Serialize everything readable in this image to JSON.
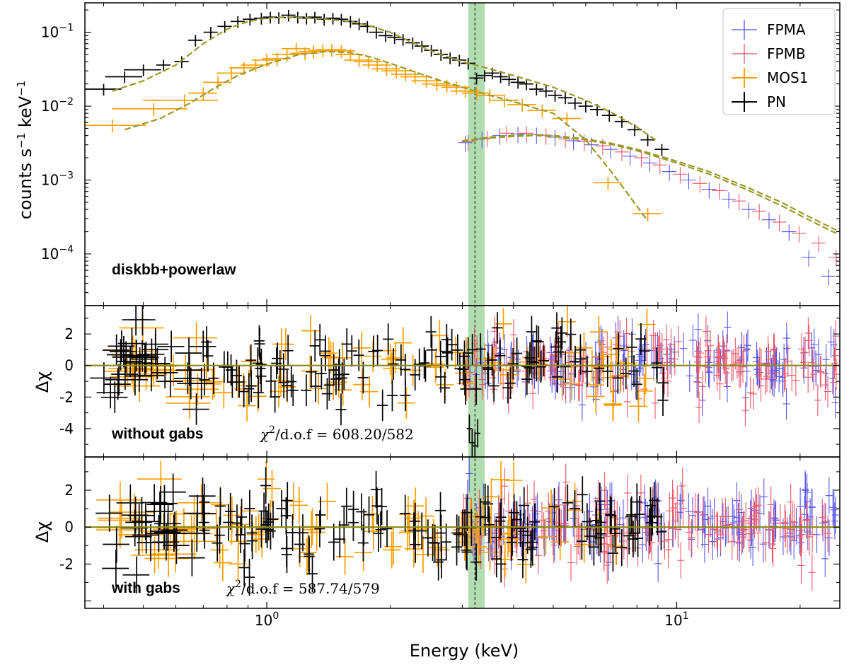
{
  "chart_data": {
    "type": "scatter",
    "x_scale": "log",
    "xlim": [
      0.36,
      25
    ],
    "xlabel": "Energy (keV)",
    "x_ticks": [
      {
        "value": 1,
        "base": "10",
        "exp": "0"
      },
      {
        "value": 10,
        "base": "10",
        "exp": "1"
      }
    ],
    "line_energy_keV": 3.22,
    "band_keV": [
      3.1,
      3.4
    ],
    "legend": {
      "position": "top-right",
      "entries": [
        {
          "name": "FPMA",
          "color": "#5555ee"
        },
        {
          "name": "FPMB",
          "color": "#ee5566"
        },
        {
          "name": "MOS1",
          "color": "#ff9f00"
        },
        {
          "name": "PN",
          "color": "#000000"
        }
      ]
    },
    "panels": [
      {
        "id": "spectrum",
        "y_scale": "log",
        "ylim": [
          2e-05,
          0.25
        ],
        "ylabel": "counts s-1 keV-1",
        "ylabel_parts": {
          "a": "counts s",
          "sup1": "−1",
          "b": " keV",
          "sup2": "−1"
        },
        "y_ticks": [
          {
            "value": 0.1,
            "base": "10",
            "exp": "−1"
          },
          {
            "value": 0.01,
            "base": "10",
            "exp": "−2"
          },
          {
            "value": 0.001,
            "base": "10",
            "exp": "−3"
          },
          {
            "value": 0.0001,
            "base": "10",
            "exp": "−4"
          }
        ],
        "label": "diskbb+powerlaw",
        "model_color": "#9a9a28",
        "series": [
          {
            "name": "PN",
            "color": "#000000",
            "x": [
              0.4,
              0.45,
              0.5,
              0.56,
              0.62,
              0.67,
              0.73,
              0.79,
              0.85,
              0.91,
              0.97,
              1.02,
              1.07,
              1.13,
              1.19,
              1.25,
              1.31,
              1.38,
              1.45,
              1.52,
              1.6,
              1.68,
              1.76,
              1.85,
              1.95,
              2.05,
              2.15,
              2.27,
              2.39,
              2.52,
              2.66,
              2.8,
              2.95,
              3.1,
              3.25,
              3.4,
              3.55,
              3.72,
              3.9,
              4.1,
              4.3,
              4.55,
              4.8,
              5.05,
              5.35,
              5.65,
              6.0,
              6.4,
              6.85,
              7.35,
              7.9,
              8.5,
              9.2
            ],
            "y": [
              0.017,
              0.025,
              0.031,
              0.036,
              0.04,
              0.078,
              0.1,
              0.12,
              0.14,
              0.15,
              0.155,
              0.16,
              0.158,
              0.17,
              0.16,
              0.155,
              0.16,
              0.15,
              0.155,
              0.15,
              0.14,
              0.13,
              0.12,
              0.1,
              0.09,
              0.085,
              0.08,
              0.072,
              0.065,
              0.057,
              0.05,
              0.045,
              0.042,
              0.038,
              0.024,
              0.026,
              0.028,
              0.025,
              0.023,
              0.021,
              0.02,
              0.017,
              0.016,
              0.014,
              0.013,
              0.011,
              0.01,
              0.009,
              0.0075,
              0.0062,
              0.0048,
              0.0035,
              0.0026
            ],
            "xerr_frac": 0.04,
            "yerr_frac": 0.18
          },
          {
            "name": "MOS1",
            "color": "#ff9f00",
            "x": [
              0.42,
              0.53,
              0.63,
              0.7,
              0.76,
              0.82,
              0.88,
              0.94,
              1.0,
              1.06,
              1.12,
              1.18,
              1.24,
              1.3,
              1.37,
              1.44,
              1.52,
              1.6,
              1.68,
              1.77,
              1.86,
              1.96,
              2.07,
              2.18,
              2.3,
              2.45,
              2.6,
              2.75,
              2.9,
              3.05,
              3.25,
              3.5,
              3.8,
              4.2,
              4.7,
              5.4,
              6.8,
              8.5
            ],
            "y": [
              0.0055,
              0.0092,
              0.012,
              0.015,
              0.021,
              0.028,
              0.033,
              0.036,
              0.042,
              0.044,
              0.05,
              0.06,
              0.052,
              0.055,
              0.057,
              0.058,
              0.056,
              0.05,
              0.042,
              0.04,
              0.036,
              0.032,
              0.03,
              0.027,
              0.025,
              0.022,
              0.02,
              0.019,
              0.018,
              0.016,
              0.015,
              0.014,
              0.012,
              0.0105,
              0.0088,
              0.0068,
              0.00092,
              0.00035
            ],
            "xerr_frac": 0.08,
            "yerr_frac": 0.2
          },
          {
            "name": "FPMA",
            "color": "#5555ee",
            "x": [
              3.05,
              3.35,
              3.7,
              4.1,
              4.55,
              5.05,
              5.6,
              6.2,
              6.9,
              7.7,
              8.6,
              9.6,
              10.7,
              12.0,
              13.4,
              15.0,
              16.8,
              18.8,
              21.0,
              23.5
            ],
            "y": [
              0.0032,
              0.0036,
              0.004,
              0.0042,
              0.0041,
              0.0038,
              0.0034,
              0.003,
              0.0026,
              0.0021,
              0.0017,
              0.0013,
              0.001,
              0.00075,
              0.00055,
              0.0004,
              0.00029,
              0.0002,
              9e-05,
              5e-05
            ],
            "xerr_frac": 0.04,
            "yerr_frac": 0.25
          },
          {
            "name": "FPMB",
            "color": "#ee5566",
            "x": [
              3.1,
              3.45,
              3.85,
              4.3,
              4.8,
              5.35,
              5.95,
              6.6,
              7.35,
              8.2,
              9.1,
              10.2,
              11.4,
              12.7,
              14.2,
              15.9,
              17.8,
              19.9,
              22.2,
              24.5
            ],
            "y": [
              0.0033,
              0.0037,
              0.0043,
              0.0043,
              0.004,
              0.0036,
              0.0033,
              0.0029,
              0.0024,
              0.002,
              0.0016,
              0.0012,
              0.0009,
              0.00072,
              0.00052,
              0.00038,
              0.00027,
              0.00019,
              0.00014,
              9e-05
            ],
            "xerr_frac": 0.04,
            "yerr_frac": 0.25
          }
        ],
        "models": [
          {
            "name": "PN model",
            "x": [
              0.42,
              0.5,
              0.6,
              0.7,
              0.8,
              0.9,
              1.0,
              1.1,
              1.2,
              1.4,
              1.6,
              1.8,
              2.0,
              2.3,
              2.6,
              3.0,
              3.5,
              4.0,
              5.0,
              6.0,
              7.0,
              8.0,
              9.0
            ],
            "y": [
              0.016,
              0.022,
              0.036,
              0.07,
              0.11,
              0.14,
              0.155,
              0.16,
              0.158,
              0.15,
              0.14,
              0.12,
              0.1,
              0.07,
              0.052,
              0.04,
              0.032,
              0.026,
              0.018,
              0.012,
              0.008,
              0.0052,
              0.0033
            ]
          },
          {
            "name": "MOS1 model",
            "x": [
              0.45,
              0.55,
              0.65,
              0.75,
              0.85,
              1.0,
              1.2,
              1.4,
              1.6,
              1.8,
              2.0,
              2.3,
              2.6,
              3.0,
              3.5,
              4.0,
              5.0,
              6.0,
              7.0,
              8.5
            ],
            "y": [
              0.0048,
              0.0068,
              0.011,
              0.018,
              0.026,
              0.037,
              0.05,
              0.055,
              0.053,
              0.046,
              0.038,
              0.029,
              0.023,
              0.018,
              0.014,
              0.0115,
              0.008,
              0.0035,
              0.0012,
              0.00028
            ]
          },
          {
            "name": "FPMA model",
            "x": [
              3.0,
              3.5,
              4.0,
              4.5,
              5.0,
              6.0,
              7.0,
              8.0,
              10.0,
              12.0,
              15.0,
              18.0,
              21.0,
              24.5
            ],
            "y": [
              0.0033,
              0.0037,
              0.0039,
              0.004,
              0.0039,
              0.0035,
              0.003,
              0.0025,
              0.0017,
              0.0012,
              0.00072,
              0.00045,
              0.00029,
              0.00019
            ]
          },
          {
            "name": "FPMB model",
            "x": [
              3.0,
              3.5,
              4.0,
              4.5,
              5.0,
              6.0,
              7.0,
              8.0,
              10.0,
              12.0,
              15.0,
              18.0,
              21.0,
              24.5
            ],
            "y": [
              0.0034,
              0.0038,
              0.004,
              0.0041,
              0.004,
              0.0036,
              0.0031,
              0.0026,
              0.0018,
              0.0013,
              0.00078,
              0.0005,
              0.00032,
              0.00021
            ]
          }
        ]
      },
      {
        "id": "residuals-without-gabs",
        "y_scale": "linear",
        "ylim": [
          -5.8,
          3.8
        ],
        "ylabel": "Δχ",
        "y_ticks": [
          {
            "value": 2,
            "label": "2"
          },
          {
            "value": 0,
            "label": "0"
          },
          {
            "value": -2,
            "label": "-2"
          },
          {
            "value": -4,
            "label": "-4"
          }
        ],
        "label": "without gabs",
        "stat_text": {
          "chi": "χ",
          "sup": "2",
          "rest": "/d.o.f = 608.20/582"
        },
        "dip": {
          "x": [
            3.12,
            3.17,
            3.22,
            3.27
          ],
          "y": [
            -4.0,
            -4.9,
            -5.1,
            -4.3
          ],
          "color": "#000000"
        },
        "series": [
          {
            "name": "PN",
            "color": "#000000",
            "n": 170,
            "xmin": 0.4,
            "xmax": 9.5,
            "seed": 11,
            "amp": 1.1,
            "xerr_frac": 0.03
          },
          {
            "name": "MOS1",
            "color": "#ff9f00",
            "n": 95,
            "xmin": 0.42,
            "xmax": 8.5,
            "seed": 23,
            "amp": 1.15,
            "xerr_frac": 0.05
          },
          {
            "name": "FPMA",
            "color": "#5555ee",
            "n": 160,
            "xmin": 3.0,
            "xmax": 24.5,
            "seed": 37,
            "amp": 1.0,
            "xerr_frac": 0.02
          },
          {
            "name": "FPMB",
            "color": "#ee5566",
            "n": 160,
            "xmin": 3.0,
            "xmax": 24.5,
            "seed": 53,
            "amp": 1.0,
            "xerr_frac": 0.02
          }
        ]
      },
      {
        "id": "residuals-with-gabs",
        "y_scale": "linear",
        "ylim": [
          -4.4,
          3.8
        ],
        "ylabel": "Δχ",
        "y_ticks": [
          {
            "value": 2,
            "label": "2"
          },
          {
            "value": 0,
            "label": "0"
          },
          {
            "value": -2,
            "label": "-2"
          }
        ],
        "label": "with gabs",
        "stat_text": {
          "chi": "χ",
          "sup": "2",
          "rest": "/d.o.f = 587.74/579"
        },
        "series": [
          {
            "name": "PN",
            "color": "#000000",
            "n": 170,
            "xmin": 0.4,
            "xmax": 9.5,
            "seed": 71,
            "amp": 1.0,
            "xerr_frac": 0.03
          },
          {
            "name": "MOS1",
            "color": "#ff9f00",
            "n": 95,
            "xmin": 0.42,
            "xmax": 8.5,
            "seed": 83,
            "amp": 1.05,
            "xerr_frac": 0.05
          },
          {
            "name": "FPMA",
            "color": "#5555ee",
            "n": 160,
            "xmin": 3.0,
            "xmax": 24.5,
            "seed": 97,
            "amp": 0.95,
            "xerr_frac": 0.02
          },
          {
            "name": "FPMB",
            "color": "#ee5566",
            "n": 160,
            "xmin": 3.0,
            "xmax": 24.5,
            "seed": 101,
            "amp": 0.95,
            "xerr_frac": 0.02
          }
        ]
      }
    ]
  }
}
